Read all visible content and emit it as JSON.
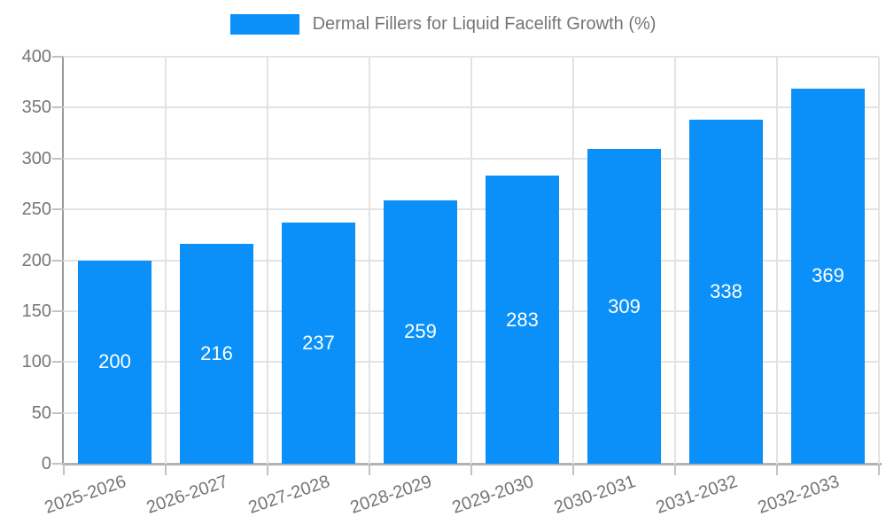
{
  "chart_data": {
    "type": "bar",
    "title": "Dermal Fillers for Liquid Facelift Growth (%)",
    "legend": {
      "position": "top",
      "label": "Dermal Fillers for Liquid Facelift Growth (%)"
    },
    "categories": [
      "2025-2026",
      "2026-2027",
      "2027-2028",
      "2028-2029",
      "2029-2030",
      "2030-2031",
      "2031-2032",
      "2032-2033"
    ],
    "values": [
      200,
      216,
      237,
      259,
      283,
      309,
      338,
      369
    ],
    "xlabel": "",
    "ylabel": "",
    "ylim": [
      0,
      400
    ],
    "ytick_step": 50,
    "yticks": [
      0,
      50,
      100,
      150,
      200,
      250,
      300,
      350,
      400
    ],
    "grid": true,
    "x_label_rotation_deg": -19,
    "value_labels_inside_bars": true,
    "colors": {
      "bar": "#0a90f8",
      "bar_label": "#ffffff",
      "axis_text": "#757575",
      "grid": "#e3e3e3",
      "tick": "#c2c2c2",
      "axis_line": "#999999",
      "bottom_line": "#b3b3b3",
      "background": "#ffffff"
    }
  }
}
